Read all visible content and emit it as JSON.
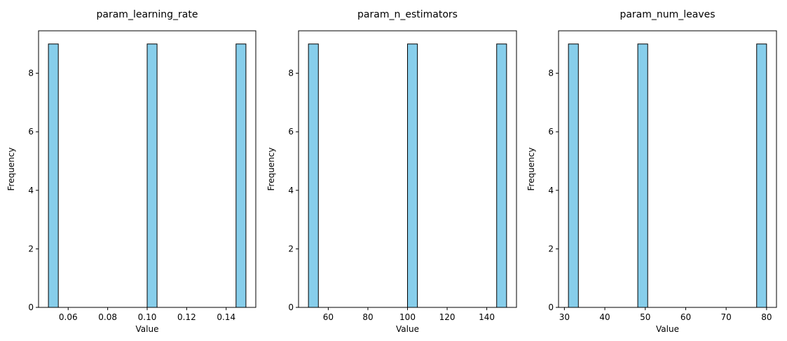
{
  "colors": {
    "bar_fill": "#87ceeb",
    "bar_edge": "#000000",
    "axis": "#000000"
  },
  "chart_data": [
    {
      "type": "bar",
      "title": "param_learning_rate",
      "xlabel": "Value",
      "ylabel": "Frequency",
      "xlim": [
        0.045,
        0.155
      ],
      "ylim": [
        0,
        9.45
      ],
      "xticks": [
        0.06,
        0.08,
        0.1,
        0.12,
        0.14
      ],
      "xticklabels": [
        "0.06",
        "0.08",
        "0.10",
        "0.12",
        "0.14"
      ],
      "yticks": [
        0,
        2,
        4,
        6,
        8
      ],
      "yticklabels": [
        "0",
        "2",
        "4",
        "6",
        "8"
      ],
      "bins": [
        {
          "x0": 0.05,
          "x1": 0.055,
          "count": 9
        },
        {
          "x0": 0.1,
          "x1": 0.105,
          "count": 9
        },
        {
          "x0": 0.145,
          "x1": 0.15,
          "count": 9
        }
      ]
    },
    {
      "type": "bar",
      "title": "param_n_estimators",
      "xlabel": "Value",
      "ylabel": "Frequency",
      "xlim": [
        45,
        155
      ],
      "ylim": [
        0,
        9.45
      ],
      "xticks": [
        60,
        80,
        100,
        120,
        140
      ],
      "xticklabels": [
        "60",
        "80",
        "100",
        "120",
        "140"
      ],
      "yticks": [
        0,
        2,
        4,
        6,
        8
      ],
      "yticklabels": [
        "0",
        "2",
        "4",
        "6",
        "8"
      ],
      "bins": [
        {
          "x0": 50,
          "x1": 55,
          "count": 9
        },
        {
          "x0": 100,
          "x1": 105,
          "count": 9
        },
        {
          "x0": 145,
          "x1": 150,
          "count": 9
        }
      ]
    },
    {
      "type": "bar",
      "title": "param_num_leaves",
      "xlabel": "Value",
      "ylabel": "Frequency",
      "xlim": [
        28.55,
        82.45
      ],
      "ylim": [
        0,
        9.45
      ],
      "xticks": [
        30,
        40,
        50,
        60,
        70,
        80
      ],
      "xticklabels": [
        "30",
        "40",
        "50",
        "60",
        "70",
        "80"
      ],
      "yticks": [
        0,
        2,
        4,
        6,
        8
      ],
      "yticklabels": [
        "0",
        "2",
        "4",
        "6",
        "8"
      ],
      "bins": [
        {
          "x0": 31.0,
          "x1": 33.45,
          "count": 9
        },
        {
          "x0": 48.15,
          "x1": 50.6,
          "count": 9
        },
        {
          "x0": 77.55,
          "x1": 80.0,
          "count": 9
        }
      ]
    }
  ]
}
